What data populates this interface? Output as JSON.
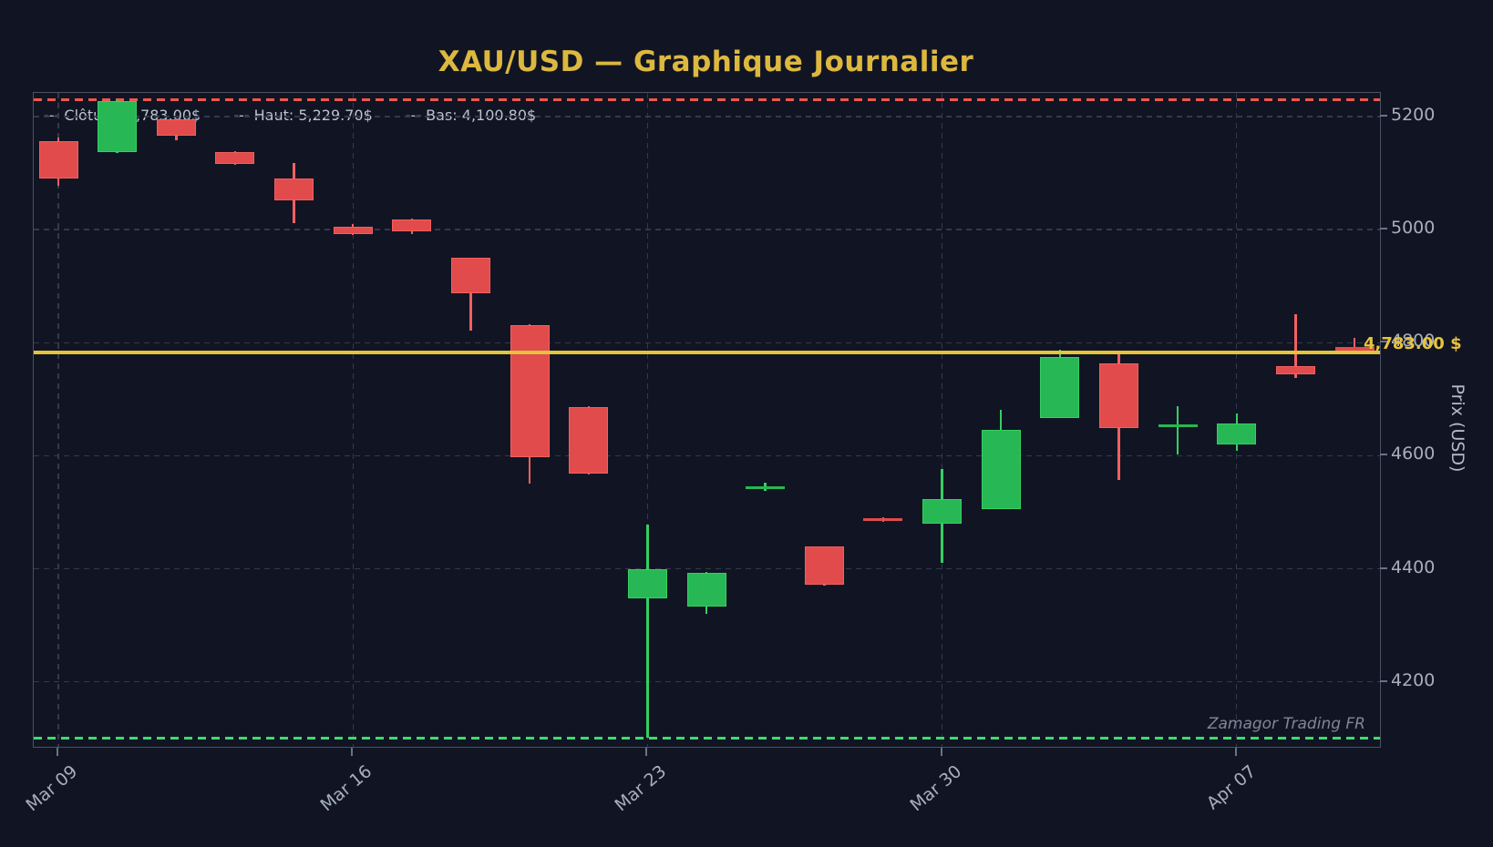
{
  "title": "XAU/USD — Graphique Journalier",
  "legend": {
    "items": [
      "--- Clôture: 4,783.00$",
      "--- Haut: 5,229.70$",
      "--- Bas: 4,100.80$"
    ]
  },
  "watermark": "Zamagor Trading FR",
  "price_label": "4,783.00 $",
  "y_axis": {
    "title": "Prix (USD)",
    "ticks": [
      {
        "value": 5200,
        "label": "5200"
      },
      {
        "value": 5000,
        "label": "5000"
      },
      {
        "value": 4800,
        "label": "4800"
      },
      {
        "value": 4600,
        "label": "4600"
      },
      {
        "value": 4400,
        "label": "4400"
      },
      {
        "value": 4200,
        "label": "4200"
      }
    ]
  },
  "colors": {
    "background": "#111523",
    "bullish": "#27b754",
    "bullish_edge": "#36cf63",
    "bearish": "#e14b4b",
    "bearish_edge": "#f26060",
    "close_line": "#e5c33c",
    "high_line": "#f2564b",
    "low_line": "#3ddc6e",
    "title_gold": "#ddb83f",
    "grid": "#323a4b",
    "tick_text": "#a7afbe"
  },
  "chart_data": {
    "type": "candlestick",
    "title": "XAU/USD — Graphique Journalier",
    "ylabel": "Prix (USD)",
    "ylim": [
      4085,
      5242
    ],
    "grid": true,
    "legend_position": "top-left",
    "legend": [
      "--- Clôture: 4,783.00$",
      "--- Haut: 5,229.70$",
      "--- Bas: 4,100.80$"
    ],
    "dates": [
      "Mar 09",
      "Mar 10",
      "Mar 11",
      "Mar 12",
      "Mar 13",
      "Mar 16",
      "Mar 17",
      "Mar 18",
      "Mar 19",
      "Mar 20",
      "Mar 23",
      "Mar 24",
      "Mar 25",
      "Mar 26",
      "Mar 27",
      "Mar 30",
      "Mar 31",
      "Apr 01",
      "Apr 02",
      "Apr 03",
      "Apr 07",
      "Apr 08",
      "Apr 09"
    ],
    "ohlc": [
      [
        5157,
        5163,
        5078,
        5090
      ],
      [
        5137,
        5229.7,
        5135,
        5228
      ],
      [
        5196,
        5197,
        5158,
        5166
      ],
      [
        5138,
        5139,
        5115,
        5116
      ],
      [
        5090,
        5118,
        5011,
        5052
      ],
      [
        5005,
        5010,
        4991,
        4992
      ],
      [
        5018,
        5019,
        4993,
        4997
      ],
      [
        4950,
        4951,
        4821,
        4887
      ],
      [
        4831,
        4832,
        4551,
        4597
      ],
      [
        4686,
        4687,
        4567,
        4568
      ],
      [
        4347,
        4478,
        4100.8,
        4400
      ],
      [
        4333,
        4394,
        4320,
        4393
      ],
      [
        4544,
        4552,
        4537,
        4546
      ],
      [
        4439,
        4440,
        4371,
        4372
      ],
      [
        4489,
        4491,
        4483,
        4486
      ],
      [
        4479,
        4576,
        4411,
        4523
      ],
      [
        4506,
        4682,
        4505,
        4646
      ],
      [
        4667,
        4788,
        4666,
        4775
      ],
      [
        4763,
        4779,
        4557,
        4649
      ],
      [
        4652,
        4687,
        4602,
        4655
      ],
      [
        4620,
        4675,
        4609,
        4657
      ],
      [
        4759,
        4851,
        4737,
        4744
      ],
      [
        4792,
        4809,
        4782,
        4783
      ]
    ],
    "xticks": [
      {
        "index": 0,
        "label": "Mar 09"
      },
      {
        "index": 5,
        "label": "Mar 16"
      },
      {
        "index": 10,
        "label": "Mar 23"
      },
      {
        "index": 15,
        "label": "Mar 30"
      },
      {
        "index": 20,
        "label": "Apr 07"
      }
    ],
    "hlines": [
      {
        "role": "close",
        "value": 4783,
        "style": "solid",
        "color": "#e5c33c",
        "label": "4,783.00 $"
      },
      {
        "role": "high",
        "value": 5229.7,
        "style": "dashed",
        "color": "#f2564b"
      },
      {
        "role": "low",
        "value": 4100.8,
        "style": "dashed",
        "color": "#3ddc6e"
      }
    ]
  }
}
